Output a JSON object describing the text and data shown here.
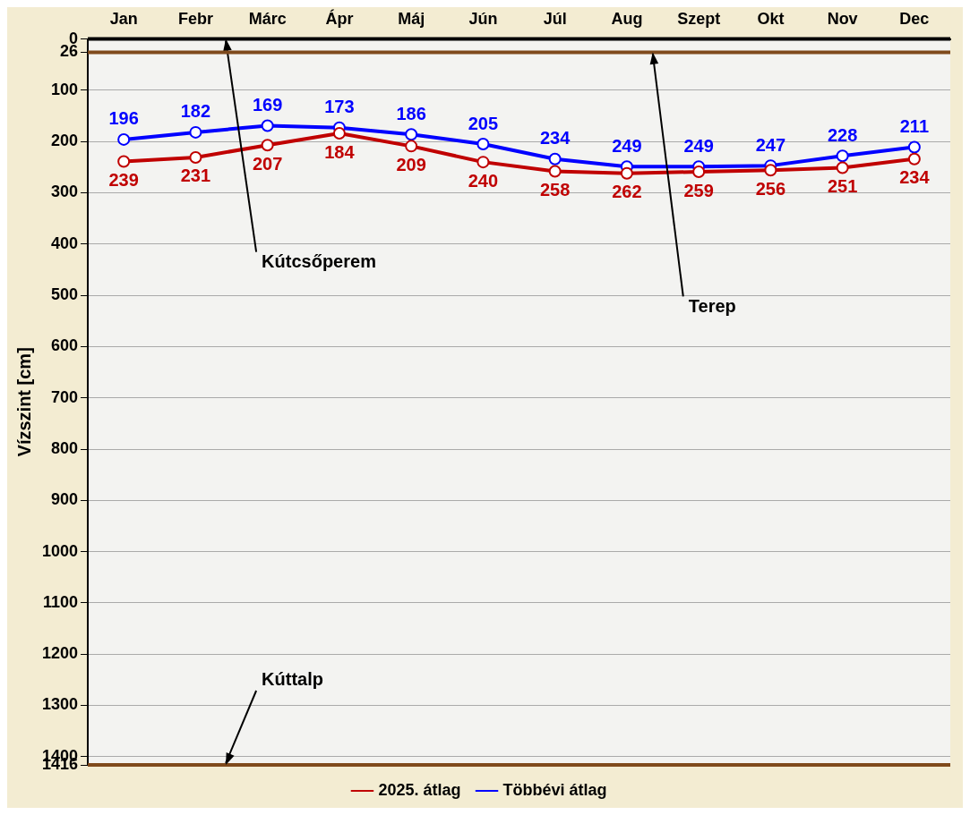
{
  "chart_data": {
    "type": "line",
    "ylabel": "Vízszint [cm]",
    "categories": [
      "Jan",
      "Febr",
      "Márc",
      "Ápr",
      "Máj",
      "Jún",
      "Júl",
      "Aug",
      "Szept",
      "Okt",
      "Nov",
      "Dec"
    ],
    "series": [
      {
        "name": "2025. átlag",
        "color": "#c00000",
        "values": [
          239,
          231,
          207,
          184,
          209,
          240,
          258,
          262,
          259,
          256,
          251,
          234
        ]
      },
      {
        "name": "Többévi átlag",
        "color": "#0000ff",
        "values": [
          196,
          182,
          169,
          173,
          186,
          205,
          234,
          249,
          249,
          247,
          228,
          211
        ]
      }
    ],
    "ylim": [
      1416,
      0
    ],
    "yticks": [
      0,
      26,
      100,
      200,
      300,
      400,
      500,
      600,
      700,
      800,
      900,
      1000,
      1100,
      1200,
      1300,
      1400,
      1416
    ],
    "ref_lines": [
      {
        "axis": "y",
        "value": 0,
        "label": "Kútcsőperem",
        "color": "#000000"
      },
      {
        "axis": "y",
        "value": 26,
        "label": "Terep",
        "color": "#7f4a1c"
      },
      {
        "axis": "y",
        "value": 1416,
        "label": "Kúttalp",
        "color": "#7f4a1c"
      }
    ],
    "data_labels": true,
    "grid": "y",
    "legend": "bottom",
    "marker": "circle",
    "line_style": "solid"
  }
}
